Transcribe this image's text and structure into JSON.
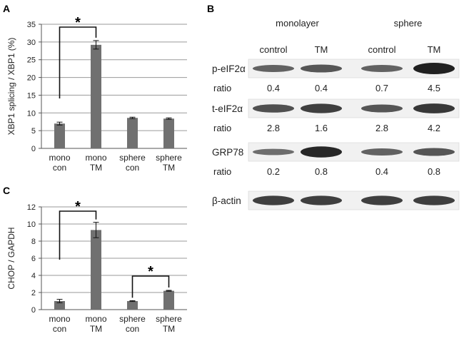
{
  "panels": {
    "a": "A",
    "b": "B",
    "c": "C"
  },
  "chart_data": [
    {
      "type": "bar",
      "panel": "A",
      "categories": [
        "mono con",
        "mono TM",
        "sphere con",
        "sphere TM"
      ],
      "category_lines": [
        [
          "mono",
          "con"
        ],
        [
          "mono",
          "TM"
        ],
        [
          "sphere",
          "con"
        ],
        [
          "sphere",
          "TM"
        ]
      ],
      "values": [
        7.0,
        29.2,
        8.6,
        8.4
      ],
      "errors": [
        0.4,
        1.2,
        0.2,
        0.2
      ],
      "ylabel": "XBP1 splicing / XBP1 (%)",
      "ylim": [
        0,
        35
      ],
      "yticks": [
        0,
        5,
        10,
        15,
        20,
        25,
        30,
        35
      ],
      "grid": true,
      "significance": [
        {
          "from": 0,
          "to": 1,
          "label": "*"
        }
      ],
      "bar_color": "#707070"
    },
    {
      "type": "bar",
      "panel": "C",
      "categories": [
        "mono con",
        "mono TM",
        "sphere con",
        "sphere TM"
      ],
      "category_lines": [
        [
          "mono",
          "con"
        ],
        [
          "mono",
          "TM"
        ],
        [
          "sphere",
          "con"
        ],
        [
          "sphere",
          "TM"
        ]
      ],
      "values": [
        1.0,
        9.3,
        1.0,
        2.2
      ],
      "errors": [
        0.2,
        0.9,
        0.05,
        0.05
      ],
      "ylabel": "CHOP / GAPDH",
      "ylim": [
        0,
        12
      ],
      "yticks": [
        0,
        2,
        4,
        6,
        8,
        10,
        12
      ],
      "grid": true,
      "significance": [
        {
          "from": 0,
          "to": 1,
          "label": "*"
        },
        {
          "from": 2,
          "to": 3,
          "label": "*"
        }
      ],
      "bar_color": "#707070"
    }
  ],
  "blot": {
    "groups": [
      "monolayer",
      "sphere"
    ],
    "columns": [
      "control",
      "TM",
      "control",
      "TM"
    ],
    "ratio_label": "ratio",
    "rows": [
      {
        "label": "p-eIF2α",
        "intensity": [
          0.45,
          0.55,
          0.45,
          1.0
        ],
        "ratios": [
          "0.4",
          "0.4",
          "0.7",
          "4.5"
        ]
      },
      {
        "label": "t-eIF2α",
        "intensity": [
          0.6,
          0.75,
          0.55,
          0.8
        ],
        "ratios": [
          "2.8",
          "1.6",
          "2.8",
          "4.2"
        ]
      },
      {
        "label": "GRP78",
        "intensity": [
          0.35,
          0.95,
          0.45,
          0.55
        ],
        "ratios": [
          "0.2",
          "0.8",
          "0.4",
          "0.8"
        ]
      },
      {
        "label": "β-actin",
        "intensity": [
          0.75,
          0.75,
          0.75,
          0.75
        ],
        "ratios": []
      }
    ]
  }
}
